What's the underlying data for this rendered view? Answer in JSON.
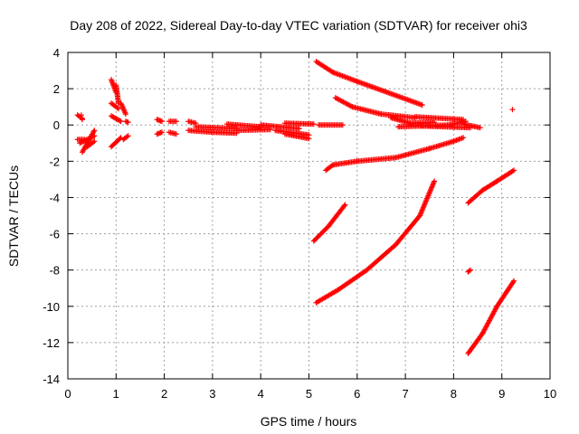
{
  "chart_data": {
    "type": "scatter",
    "title": "Day 208 of 2022, Sidereal Day-to-day VTEC variation (SDTVAR) for receiver ohi3",
    "xlabel": "GPS time / hours",
    "ylabel": "SDTVAR / TECUs",
    "xlim": [
      0,
      10
    ],
    "ylim": [
      -14,
      4
    ],
    "xticks": [
      "0",
      "1",
      "2",
      "3",
      "4",
      "5",
      "6",
      "7",
      "8",
      "9",
      "10"
    ],
    "yticks": [
      "4",
      "2",
      "0",
      "-2",
      "-4",
      "-6",
      "-8",
      "-10",
      "-12",
      "-14"
    ],
    "grid": true,
    "marker_color": "#ff0000",
    "marker": "plus",
    "segments": [
      {
        "from": [
          0.2,
          0.55
        ],
        "to": [
          0.3,
          0.35
        ]
      },
      {
        "from": [
          0.2,
          -0.8
        ],
        "to": [
          0.35,
          -0.8
        ]
      },
      {
        "from": [
          0.3,
          -1.5
        ],
        "to": [
          0.55,
          -0.3
        ]
      },
      {
        "from": [
          0.25,
          -1.0
        ],
        "to": [
          0.55,
          -0.6
        ]
      },
      {
        "from": [
          0.4,
          -1.2
        ],
        "to": [
          0.55,
          -0.9
        ]
      },
      {
        "from": [
          0.9,
          2.5
        ],
        "to": [
          1.0,
          1.8
        ]
      },
      {
        "from": [
          0.9,
          1.2
        ],
        "to": [
          1.05,
          0.9
        ]
      },
      {
        "from": [
          0.9,
          0.5
        ],
        "to": [
          1.1,
          0.2
        ]
      },
      {
        "from": [
          0.9,
          -1.2
        ],
        "to": [
          1.1,
          -0.7
        ]
      },
      {
        "from": [
          1.0,
          2.2
        ],
        "to": [
          1.05,
          1.2
        ]
      },
      {
        "from": [
          1.1,
          1.2
        ],
        "to": [
          1.2,
          0.6
        ]
      },
      {
        "from": [
          1.15,
          -0.8
        ],
        "to": [
          1.25,
          -0.6
        ]
      },
      {
        "from": [
          1.2,
          0.2
        ],
        "to": [
          1.25,
          0.15
        ]
      },
      {
        "from": [
          1.85,
          0.3
        ],
        "to": [
          1.95,
          0.2
        ]
      },
      {
        "from": [
          1.85,
          -0.5
        ],
        "to": [
          1.95,
          -0.4
        ]
      },
      {
        "from": [
          2.1,
          0.2
        ],
        "to": [
          2.25,
          0.2
        ]
      },
      {
        "from": [
          2.1,
          -0.4
        ],
        "to": [
          2.25,
          -0.5
        ]
      },
      {
        "from": [
          2.5,
          0.2
        ],
        "to": [
          2.65,
          0.1
        ]
      },
      {
        "from": [
          2.5,
          -0.3
        ],
        "to": [
          3.0,
          -0.4
        ]
      },
      {
        "from": [
          2.65,
          -0.1
        ],
        "to": [
          3.5,
          -0.2
        ]
      },
      {
        "from": [
          3.0,
          -0.4
        ],
        "to": [
          3.5,
          -0.45
        ]
      },
      {
        "from": [
          3.3,
          0.05
        ],
        "to": [
          4.0,
          -0.1
        ]
      },
      {
        "from": [
          3.5,
          -0.3
        ],
        "to": [
          4.2,
          -0.25
        ]
      },
      {
        "from": [
          4.0,
          0.0
        ],
        "to": [
          4.8,
          -0.2
        ]
      },
      {
        "from": [
          4.3,
          -0.3
        ],
        "to": [
          5.0,
          -0.55
        ]
      },
      {
        "from": [
          4.5,
          -0.5
        ],
        "to": [
          5.0,
          -0.75
        ]
      },
      {
        "from": [
          4.5,
          0.1
        ],
        "to": [
          5.1,
          0.05
        ]
      },
      {
        "from": [
          5.2,
          0.0
        ],
        "to": [
          5.7,
          0.0
        ]
      },
      {
        "from": [
          5.15,
          3.5
        ],
        "to": [
          5.5,
          2.9
        ]
      },
      {
        "from": [
          5.5,
          2.9
        ],
        "to": [
          6.0,
          2.4
        ]
      },
      {
        "from": [
          6.0,
          2.4
        ],
        "to": [
          7.35,
          1.1
        ]
      },
      {
        "from": [
          5.55,
          1.5
        ],
        "to": [
          5.9,
          1.0
        ]
      },
      {
        "from": [
          5.9,
          1.0
        ],
        "to": [
          6.5,
          0.6
        ]
      },
      {
        "from": [
          6.5,
          0.6
        ],
        "to": [
          7.2,
          0.4
        ]
      },
      {
        "from": [
          7.2,
          0.45
        ],
        "to": [
          8.2,
          0.3
        ]
      },
      {
        "from": [
          6.7,
          0.4
        ],
        "to": [
          7.1,
          0.1
        ]
      },
      {
        "from": [
          7.1,
          0.1
        ],
        "to": [
          7.6,
          0.15
        ]
      },
      {
        "from": [
          6.85,
          -0.1
        ],
        "to": [
          7.9,
          0.0
        ]
      },
      {
        "from": [
          7.9,
          0.0
        ],
        "to": [
          8.25,
          0.2
        ]
      },
      {
        "from": [
          7.3,
          -0.05
        ],
        "to": [
          8.35,
          -0.15
        ]
      },
      {
        "from": [
          8.2,
          0.05
        ],
        "to": [
          8.55,
          -0.15
        ]
      },
      {
        "from": [
          8.2,
          -0.7
        ],
        "to": [
          8.0,
          -0.9
        ]
      },
      {
        "from": [
          8.0,
          -0.9
        ],
        "to": [
          7.5,
          -1.3
        ]
      },
      {
        "from": [
          7.5,
          -1.3
        ],
        "to": [
          6.8,
          -1.8
        ]
      },
      {
        "from": [
          6.8,
          -1.8
        ],
        "to": [
          6.0,
          -2.0
        ]
      },
      {
        "from": [
          6.0,
          -2.0
        ],
        "to": [
          5.5,
          -2.2
        ]
      },
      {
        "from": [
          5.5,
          -2.2
        ],
        "to": [
          5.35,
          -2.5
        ]
      },
      {
        "from": [
          5.1,
          -6.4
        ],
        "to": [
          5.4,
          -5.6
        ]
      },
      {
        "from": [
          5.4,
          -5.6
        ],
        "to": [
          5.75,
          -4.4
        ]
      },
      {
        "from": [
          5.15,
          -9.8
        ],
        "to": [
          5.6,
          -9.1
        ]
      },
      {
        "from": [
          5.6,
          -9.1
        ],
        "to": [
          6.2,
          -8.0
        ]
      },
      {
        "from": [
          6.2,
          -8.0
        ],
        "to": [
          6.8,
          -6.6
        ]
      },
      {
        "from": [
          6.8,
          -6.6
        ],
        "to": [
          7.3,
          -5.0
        ]
      },
      {
        "from": [
          7.3,
          -5.0
        ],
        "to": [
          7.6,
          -3.1
        ]
      },
      {
        "from": [
          8.3,
          -4.3
        ],
        "to": [
          8.6,
          -3.6
        ]
      },
      {
        "from": [
          8.6,
          -3.6
        ],
        "to": [
          8.9,
          -3.1
        ]
      },
      {
        "from": [
          8.9,
          -3.1
        ],
        "to": [
          9.25,
          -2.5
        ]
      },
      {
        "from": [
          8.3,
          -8.1
        ],
        "to": [
          8.35,
          -8.0
        ]
      },
      {
        "from": [
          8.3,
          -12.6
        ],
        "to": [
          8.6,
          -11.5
        ]
      },
      {
        "from": [
          8.6,
          -11.5
        ],
        "to": [
          8.9,
          -10.0
        ]
      },
      {
        "from": [
          8.9,
          -10.0
        ],
        "to": [
          9.25,
          -8.6
        ]
      }
    ],
    "points": [
      [
        9.22,
        0.85
      ],
      [
        0.28,
        0.55
      ],
      [
        0.3,
        0.3
      ]
    ]
  }
}
